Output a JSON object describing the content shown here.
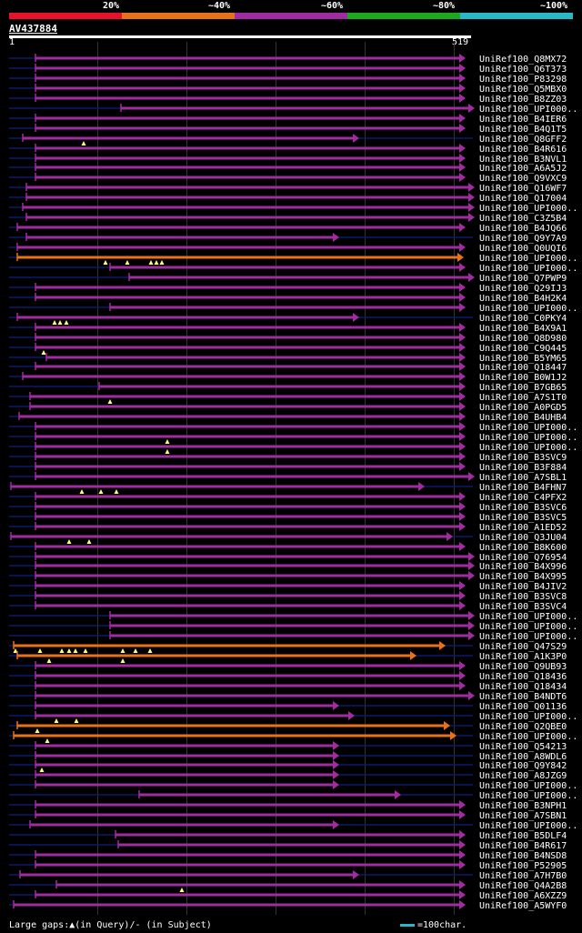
{
  "legend": {
    "segments": [
      {
        "label": "20%",
        "color": "#e8132a"
      },
      {
        "label": "~40%",
        "color": "#e9711a"
      },
      {
        "label": "~60%",
        "color": "#a12ba0"
      },
      {
        "label": "~80%",
        "color": "#1ea81e"
      },
      {
        "label": "~100%",
        "color": "#29b9c6"
      }
    ]
  },
  "query": {
    "name": "AV437884",
    "start": "1",
    "end": "519"
  },
  "hits": [
    {
      "name": "UniRef100_Q8MX72",
      "s": 39,
      "e": 505,
      "c": "p",
      "tail": false
    },
    {
      "name": "UniRef100_Q6T373",
      "s": 39,
      "e": 505,
      "c": "p",
      "tail": false
    },
    {
      "name": "UniRef100_P83298",
      "s": 39,
      "e": 505,
      "c": "p",
      "tail": false
    },
    {
      "name": "UniRef100_Q5MBX0",
      "s": 39,
      "e": 505,
      "c": "p",
      "tail": false
    },
    {
      "name": "UniRef100_B8ZZ03",
      "s": 39,
      "e": 505,
      "c": "p",
      "tail": false
    },
    {
      "name": "UniRef100_UPI000..",
      "s": 133,
      "e": 515,
      "c": "p",
      "tail": false
    },
    {
      "name": "UniRef100_B4IER6",
      "s": 39,
      "e": 505,
      "c": "p",
      "tail": false
    },
    {
      "name": "UniRef100_B4Q1T5",
      "s": 39,
      "e": 505,
      "c": "p",
      "tail": false
    },
    {
      "name": "UniRef100_Q8GFF2",
      "s": 25,
      "e": 388,
      "c": "p",
      "tail": true,
      "t": [
        92
      ]
    },
    {
      "name": "UniRef100_B4R616",
      "s": 39,
      "e": 505,
      "c": "p",
      "tail": false
    },
    {
      "name": "UniRef100_B3NVL1",
      "s": 39,
      "e": 505,
      "c": "p",
      "tail": false
    },
    {
      "name": "UniRef100_A6A5J2",
      "s": 39,
      "e": 505,
      "c": "p",
      "tail": false
    },
    {
      "name": "UniRef100_Q9VXC9",
      "s": 39,
      "e": 505,
      "c": "p",
      "tail": false
    },
    {
      "name": "UniRef100_Q16WF7",
      "s": 29,
      "e": 515,
      "c": "p",
      "tail": false
    },
    {
      "name": "UniRef100_Q17004",
      "s": 29,
      "e": 515,
      "c": "p",
      "tail": false
    },
    {
      "name": "UniRef100_UPI000..",
      "s": 25,
      "e": 515,
      "c": "p",
      "tail": false
    },
    {
      "name": "UniRef100_C3Z5B4",
      "s": 29,
      "e": 515,
      "c": "p",
      "tail": false
    },
    {
      "name": "UniRef100_B4JQ66",
      "s": 19,
      "e": 505,
      "c": "p",
      "tail": false
    },
    {
      "name": "UniRef100_Q9Y7A9",
      "s": 29,
      "e": 366,
      "c": "p",
      "tail": true
    },
    {
      "name": "UniRef100_Q0UQI6",
      "s": 19,
      "e": 505,
      "c": "p",
      "tail": false
    },
    {
      "name": "UniRef100_UPI000..",
      "s": 19,
      "e": 503,
      "c": "o",
      "tail": false,
      "t": [
        116,
        140,
        166,
        172,
        178
      ]
    },
    {
      "name": "UniRef100_UPI000..",
      "s": 121,
      "e": 505,
      "c": "p",
      "tail": false
    },
    {
      "name": "UniRef100_Q7PWP9",
      "s": 142,
      "e": 515,
      "c": "p",
      "tail": false
    },
    {
      "name": "UniRef100_Q29IJ3",
      "s": 39,
      "e": 505,
      "c": "p",
      "tail": false
    },
    {
      "name": "UniRef100_B4H2K4",
      "s": 39,
      "e": 505,
      "c": "p",
      "tail": false
    },
    {
      "name": "UniRef100_UPI000..",
      "s": 121,
      "e": 505,
      "c": "p",
      "tail": false
    },
    {
      "name": "UniRef100_C0PKY4",
      "s": 19,
      "e": 388,
      "c": "p",
      "tail": true,
      "t": [
        60,
        66,
        73
      ]
    },
    {
      "name": "UniRef100_B4X9A1",
      "s": 39,
      "e": 505,
      "c": "p",
      "tail": false
    },
    {
      "name": "UniRef100_Q8D980",
      "s": 39,
      "e": 505,
      "c": "p",
      "tail": false
    },
    {
      "name": "UniRef100_C9Q445",
      "s": 39,
      "e": 505,
      "c": "p",
      "tail": false,
      "t": [
        48
      ]
    },
    {
      "name": "UniRef100_B5YM65",
      "s": 51,
      "e": 505,
      "c": "p",
      "tail": false
    },
    {
      "name": "UniRef100_Q18447",
      "s": 39,
      "e": 505,
      "c": "p",
      "tail": false
    },
    {
      "name": "UniRef100_B0W1J2",
      "s": 25,
      "e": 505,
      "c": "p",
      "tail": false
    },
    {
      "name": "UniRef100_B7GB65",
      "s": 109,
      "e": 505,
      "c": "p",
      "tail": false
    },
    {
      "name": "UniRef100_A7S1T0",
      "s": 33,
      "e": 505,
      "c": "p",
      "tail": false,
      "t": [
        121
      ]
    },
    {
      "name": "UniRef100_A0PGD5",
      "s": 33,
      "e": 505,
      "c": "p",
      "tail": false
    },
    {
      "name": "UniRef100_B4UHB4",
      "s": 21,
      "e": 505,
      "c": "p",
      "tail": false
    },
    {
      "name": "UniRef100_UPI000..",
      "s": 39,
      "e": 505,
      "c": "p",
      "tail": false
    },
    {
      "name": "UniRef100_UPI000..",
      "s": 39,
      "e": 505,
      "c": "p",
      "tail": false,
      "t": [
        184
      ]
    },
    {
      "name": "UniRef100_UPI000..",
      "s": 39,
      "e": 505,
      "c": "p",
      "tail": false,
      "t": [
        184
      ]
    },
    {
      "name": "UniRef100_B3SVC9",
      "s": 39,
      "e": 505,
      "c": "p",
      "tail": false
    },
    {
      "name": "UniRef100_B3F884",
      "s": 39,
      "e": 505,
      "c": "p",
      "tail": false
    },
    {
      "name": "UniRef100_A7SBL1",
      "s": 39,
      "e": 515,
      "c": "p",
      "tail": false
    },
    {
      "name": "UniRef100_B4FHN7",
      "s": 12,
      "e": 460,
      "c": "p",
      "tail": true,
      "t": [
        90,
        111,
        128
      ]
    },
    {
      "name": "UniRef100_C4PFX2",
      "s": 39,
      "e": 505,
      "c": "p",
      "tail": false
    },
    {
      "name": "UniRef100_B3SVC6",
      "s": 39,
      "e": 505,
      "c": "p",
      "tail": false
    },
    {
      "name": "UniRef100_B3SVC5",
      "s": 39,
      "e": 505,
      "c": "p",
      "tail": false
    },
    {
      "name": "UniRef100_A1ED52",
      "s": 39,
      "e": 505,
      "c": "p",
      "tail": false
    },
    {
      "name": "UniRef100_Q3JU04",
      "s": 12,
      "e": 491,
      "c": "p",
      "tail": true,
      "t": [
        76,
        98
      ]
    },
    {
      "name": "UniRef100_B8K600",
      "s": 39,
      "e": 505,
      "c": "p",
      "tail": false
    },
    {
      "name": "UniRef100_Q76954",
      "s": 39,
      "e": 515,
      "c": "p",
      "tail": false
    },
    {
      "name": "UniRef100_B4X996",
      "s": 39,
      "e": 515,
      "c": "p",
      "tail": false
    },
    {
      "name": "UniRef100_B4X995",
      "s": 39,
      "e": 515,
      "c": "p",
      "tail": false
    },
    {
      "name": "UniRef100_B4JIV2",
      "s": 39,
      "e": 505,
      "c": "p",
      "tail": false
    },
    {
      "name": "UniRef100_B3SVC8",
      "s": 39,
      "e": 505,
      "c": "p",
      "tail": false
    },
    {
      "name": "UniRef100_B3SVC4",
      "s": 39,
      "e": 505,
      "c": "p",
      "tail": false
    },
    {
      "name": "UniRef100_UPI000..",
      "s": 121,
      "e": 515,
      "c": "p",
      "tail": false
    },
    {
      "name": "UniRef100_UPI000..",
      "s": 121,
      "e": 515,
      "c": "p",
      "tail": false
    },
    {
      "name": "UniRef100_UPI000..",
      "s": 121,
      "e": 515,
      "c": "p",
      "tail": false
    },
    {
      "name": "UniRef100_Q47S29",
      "s": 15,
      "e": 483,
      "c": "o",
      "tail": true,
      "t": [
        17,
        44,
        68,
        76,
        83,
        94,
        135,
        149,
        165
      ]
    },
    {
      "name": "UniRef100_A1K3P0",
      "s": 19,
      "e": 451,
      "c": "o",
      "tail": true,
      "t": [
        54,
        135
      ]
    },
    {
      "name": "UniRef100_Q9UB93",
      "s": 39,
      "e": 505,
      "c": "p",
      "tail": false
    },
    {
      "name": "UniRef100_Q18436",
      "s": 39,
      "e": 505,
      "c": "p",
      "tail": false
    },
    {
      "name": "UniRef100_Q18434",
      "s": 39,
      "e": 505,
      "c": "p",
      "tail": false
    },
    {
      "name": "UniRef100_B4NDT6",
      "s": 39,
      "e": 515,
      "c": "p",
      "tail": false
    },
    {
      "name": "UniRef100_Q01136",
      "s": 39,
      "e": 366,
      "c": "p",
      "tail": true
    },
    {
      "name": "UniRef100_UPI000..",
      "s": 39,
      "e": 383,
      "c": "p",
      "tail": true,
      "t": [
        62,
        84
      ]
    },
    {
      "name": "UniRef100_Q2QBE0",
      "s": 19,
      "e": 488,
      "c": "o",
      "tail": true,
      "t": [
        41
      ]
    },
    {
      "name": "UniRef100_UPI000..",
      "s": 15,
      "e": 495,
      "c": "o",
      "tail": true,
      "t": [
        52
      ]
    },
    {
      "name": "UniRef100_Q54213",
      "s": 39,
      "e": 366,
      "c": "p",
      "tail": true
    },
    {
      "name": "UniRef100_A8WDL6",
      "s": 39,
      "e": 366,
      "c": "p",
      "tail": true
    },
    {
      "name": "UniRef100_Q9Y842",
      "s": 39,
      "e": 366,
      "c": "p",
      "tail": true,
      "t": [
        46
      ]
    },
    {
      "name": "UniRef100_A8JZG9",
      "s": 39,
      "e": 366,
      "c": "p",
      "tail": true
    },
    {
      "name": "UniRef100_UPI000..",
      "s": 39,
      "e": 366,
      "c": "p",
      "tail": true
    },
    {
      "name": "UniRef100_UPI000..",
      "s": 153,
      "e": 434,
      "c": "p",
      "tail": true
    },
    {
      "name": "UniRef100_B3NPH1",
      "s": 39,
      "e": 505,
      "c": "p",
      "tail": false
    },
    {
      "name": "UniRef100_A7SBN1",
      "s": 39,
      "e": 505,
      "c": "p",
      "tail": false
    },
    {
      "name": "UniRef100_UPI000..",
      "s": 33,
      "e": 366,
      "c": "p",
      "tail": true
    },
    {
      "name": "UniRef100_B5DLF4",
      "s": 127,
      "e": 505,
      "c": "p",
      "tail": false
    },
    {
      "name": "UniRef100_B4R617",
      "s": 130,
      "e": 505,
      "c": "p",
      "tail": false
    },
    {
      "name": "UniRef100_B4NSD8",
      "s": 39,
      "e": 505,
      "c": "p",
      "tail": false
    },
    {
      "name": "UniRef100_P52905",
      "s": 39,
      "e": 505,
      "c": "p",
      "tail": false
    },
    {
      "name": "UniRef100_A7H7B0",
      "s": 22,
      "e": 388,
      "c": "p",
      "tail": true
    },
    {
      "name": "UniRef100_Q4A2B8",
      "s": 62,
      "e": 505,
      "c": "p",
      "tail": false,
      "t": [
        200
      ]
    },
    {
      "name": "UniRef100_A6XZZ9",
      "s": 39,
      "e": 505,
      "c": "p",
      "tail": false
    },
    {
      "name": "UniRef100_A5WYF0",
      "s": 15,
      "e": 505,
      "c": "p",
      "tail": false
    }
  ],
  "colors": {
    "p": "#a12ba0",
    "o": "#e9711a",
    "tail": "#0b1a6e",
    "label": "#ffffff",
    "gap": "#ffff80"
  },
  "footer": {
    "left": "Large gaps:▲(in Query)/- (in Subject)",
    "right": "=100char."
  }
}
